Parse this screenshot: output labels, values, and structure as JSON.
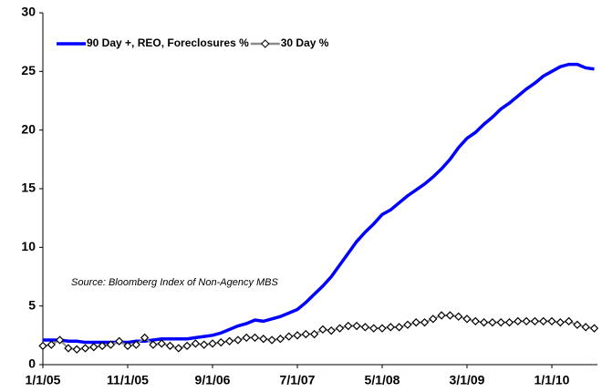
{
  "chart_data": {
    "type": "line",
    "annotation": "Source: Bloomberg Index of Non-Agency MBS",
    "categories": [
      "1/1/05",
      null,
      null,
      null,
      null,
      null,
      null,
      null,
      null,
      null,
      "11/1/05",
      null,
      null,
      null,
      null,
      null,
      null,
      null,
      null,
      null,
      "9/1/06",
      null,
      null,
      null,
      null,
      null,
      null,
      null,
      null,
      null,
      "7/1/07",
      null,
      null,
      null,
      null,
      null,
      null,
      null,
      null,
      null,
      "5/1/08",
      null,
      null,
      null,
      null,
      null,
      null,
      null,
      null,
      null,
      "3/1/09",
      null,
      null,
      null,
      null,
      null,
      null,
      null,
      null,
      null,
      "1/1/10",
      null,
      null,
      null,
      null,
      null
    ],
    "series": [
      {
        "name": "90 Day +, REO, Foreclosures %",
        "color": "#0000ff",
        "marker": false,
        "values": [
          2.1,
          2.1,
          2.1,
          2.0,
          2.0,
          1.9,
          1.9,
          1.9,
          1.9,
          1.9,
          1.9,
          2.0,
          2.0,
          2.1,
          2.2,
          2.2,
          2.2,
          2.2,
          2.3,
          2.4,
          2.5,
          2.7,
          3.0,
          3.3,
          3.5,
          3.8,
          3.7,
          3.9,
          4.1,
          4.4,
          4.7,
          5.3,
          6.0,
          6.7,
          7.5,
          8.5,
          9.5,
          10.5,
          11.3,
          12.0,
          12.8,
          13.2,
          13.8,
          14.4,
          14.9,
          15.4,
          16.0,
          16.7,
          17.5,
          18.5,
          19.3,
          19.8,
          20.5,
          21.1,
          21.8,
          22.3,
          22.9,
          23.5,
          24.0,
          24.6,
          25.0,
          25.4,
          25.6,
          25.6,
          25.3,
          25.2
        ]
      },
      {
        "name": "30 Day %",
        "color": "#8c8c8c",
        "marker": true,
        "values": [
          1.6,
          1.7,
          2.1,
          1.4,
          1.3,
          1.4,
          1.5,
          1.6,
          1.7,
          2.0,
          1.6,
          1.7,
          2.3,
          1.7,
          1.8,
          1.6,
          1.4,
          1.6,
          1.8,
          1.7,
          1.8,
          1.9,
          2.0,
          2.1,
          2.3,
          2.3,
          2.2,
          2.1,
          2.2,
          2.4,
          2.5,
          2.6,
          2.6,
          3.0,
          2.9,
          3.1,
          3.3,
          3.3,
          3.2,
          3.1,
          3.1,
          3.2,
          3.2,
          3.4,
          3.6,
          3.6,
          3.9,
          4.2,
          4.2,
          4.1,
          3.9,
          3.7,
          3.6,
          3.6,
          3.6,
          3.6,
          3.7,
          3.7,
          3.7,
          3.7,
          3.7,
          3.6,
          3.7,
          3.4,
          3.2,
          3.1
        ]
      }
    ],
    "ylim": [
      0,
      30
    ],
    "yticks": [
      0,
      5,
      10,
      15,
      20,
      25,
      30
    ],
    "grid": false,
    "legend": "top-left"
  }
}
